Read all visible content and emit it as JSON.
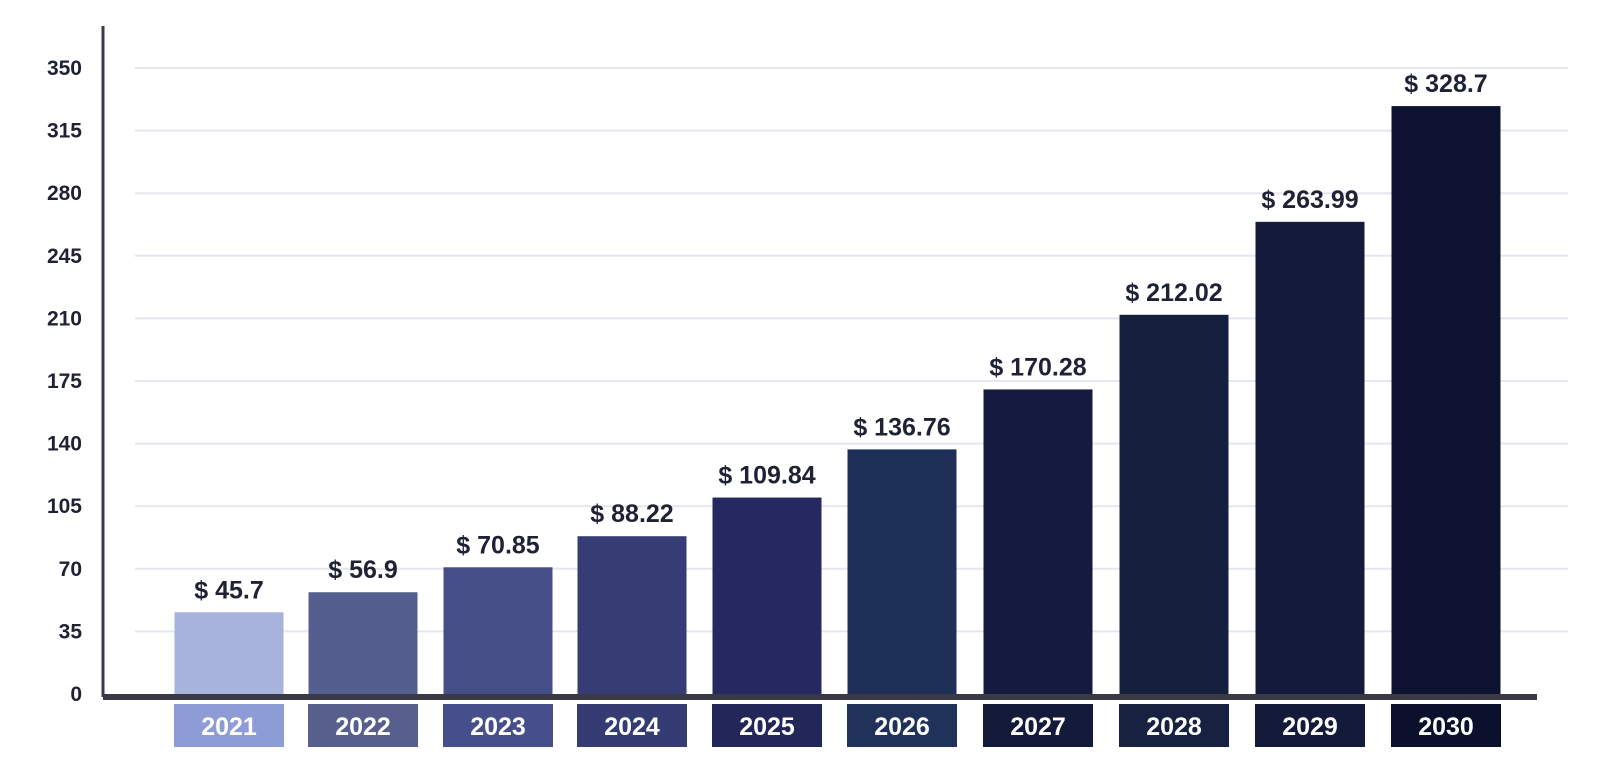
{
  "chart_data": {
    "type": "bar",
    "title": "",
    "xlabel": "",
    "ylabel": "",
    "categories": [
      "2021",
      "2022",
      "2023",
      "2024",
      "2025",
      "2026",
      "2027",
      "2028",
      "2029",
      "2030"
    ],
    "values": [
      45.7,
      56.9,
      70.85,
      88.22,
      109.84,
      136.76,
      170.28,
      212.02,
      263.99,
      328.7
    ],
    "data_labels": [
      "$ 45.7",
      "$ 56.9",
      "$ 70.85",
      "$ 88.22",
      "$ 109.84",
      "$ 136.76",
      "$ 170.28",
      "$ 212.02",
      "$ 263.99",
      "$ 328.7"
    ],
    "y_ticks": [
      "0",
      "35",
      "70",
      "105",
      "140",
      "175",
      "210",
      "245",
      "280",
      "315",
      "350"
    ],
    "ylim": [
      0,
      350
    ],
    "grid": true,
    "legend": "none",
    "colors": [
      "#a8b3dc",
      "#555f8f",
      "#454e87",
      "#363d74",
      "#26295f",
      "#1e3058",
      "#141b3e",
      "#15203f",
      "#131a3b",
      "#0c1230"
    ],
    "category_label_box_colors": [
      "#8e9cd6",
      "#595f8d",
      "#464f8c",
      "#353c73",
      "#232659",
      "#203259",
      "#141a3a",
      "#172140",
      "#141a39",
      "#0b102c"
    ],
    "gridline_color": "#e6e6ee",
    "axis_color": "#3a3a44"
  }
}
